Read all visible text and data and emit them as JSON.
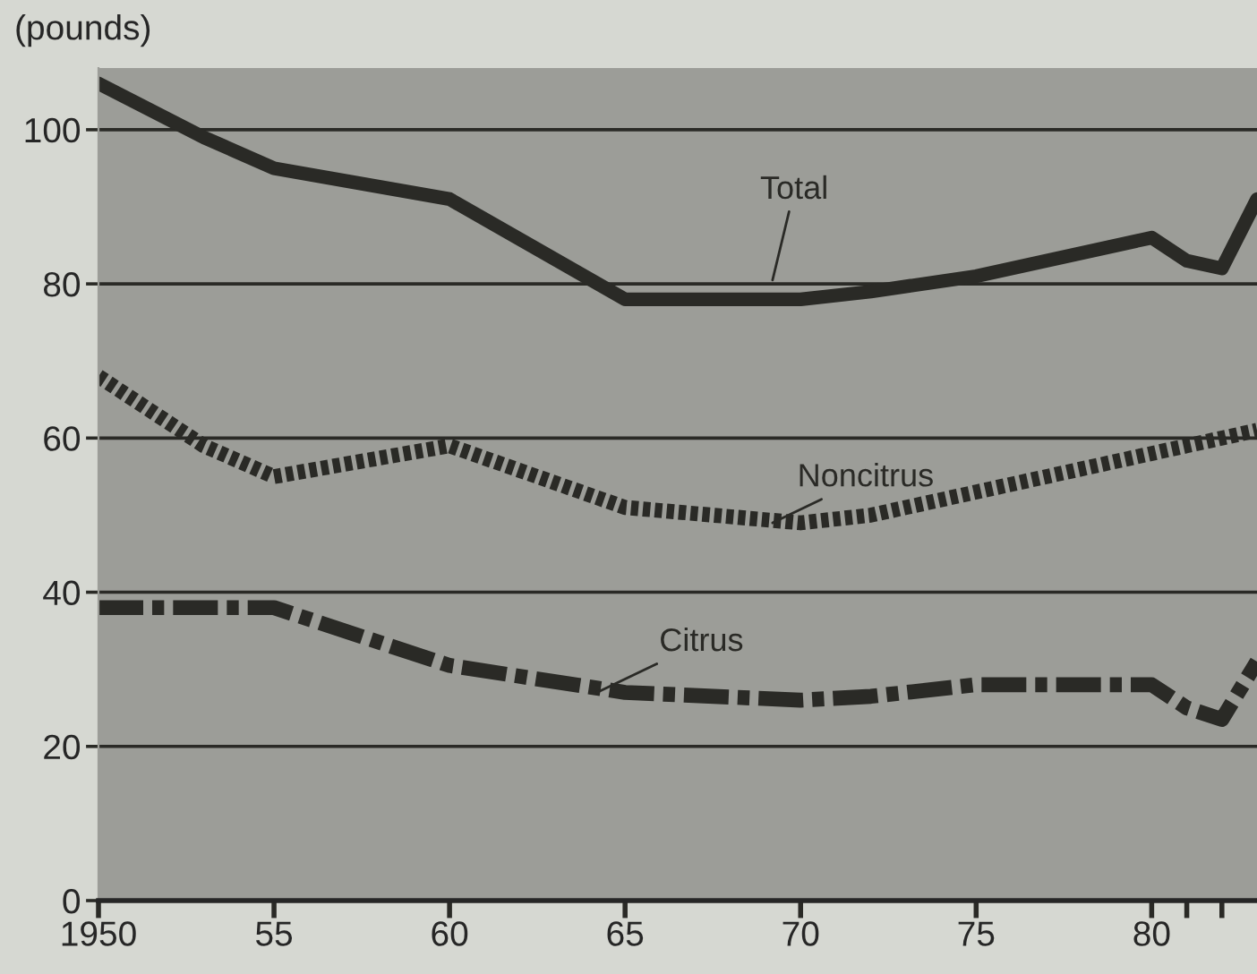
{
  "chart_data": {
    "type": "line",
    "ylabel": "(pounds)",
    "x": [
      1950,
      1953,
      1955,
      1960,
      1965,
      1970,
      1972,
      1975,
      1980,
      1981,
      1982,
      1983
    ],
    "series": [
      {
        "name": "Total",
        "color": "#2a2a26",
        "line_style": "solid",
        "values": [
          106,
          99,
          95,
          91,
          78,
          78,
          79,
          81,
          86,
          83,
          82,
          91
        ]
      },
      {
        "name": "Noncitrus",
        "color": "#2a2a26",
        "line_style": "dotted",
        "values": [
          68,
          59,
          55,
          59,
          51,
          49,
          50,
          53,
          58,
          59,
          60,
          61
        ]
      },
      {
        "name": "Citrus",
        "color": "#2a2a26",
        "line_style": "dashed",
        "values": [
          38,
          38,
          38,
          30.5,
          27,
          26,
          26.5,
          28,
          28,
          25,
          23.5,
          31
        ]
      }
    ],
    "xlim": [
      1950,
      1983
    ],
    "xticks": [
      {
        "value": 1950,
        "label": "1950"
      },
      {
        "value": 1955,
        "label": "55"
      },
      {
        "value": 1960,
        "label": "60"
      },
      {
        "value": 1965,
        "label": "65"
      },
      {
        "value": 1970,
        "label": "70"
      },
      {
        "value": 1975,
        "label": "75"
      },
      {
        "value": 1980,
        "label": "80"
      },
      {
        "value": 1981,
        "label": null
      },
      {
        "value": 1982,
        "label": null
      }
    ],
    "ylim": [
      0,
      108
    ],
    "yticks": [
      0,
      20,
      40,
      60,
      80,
      100
    ],
    "grid": "y",
    "marker": "none"
  }
}
